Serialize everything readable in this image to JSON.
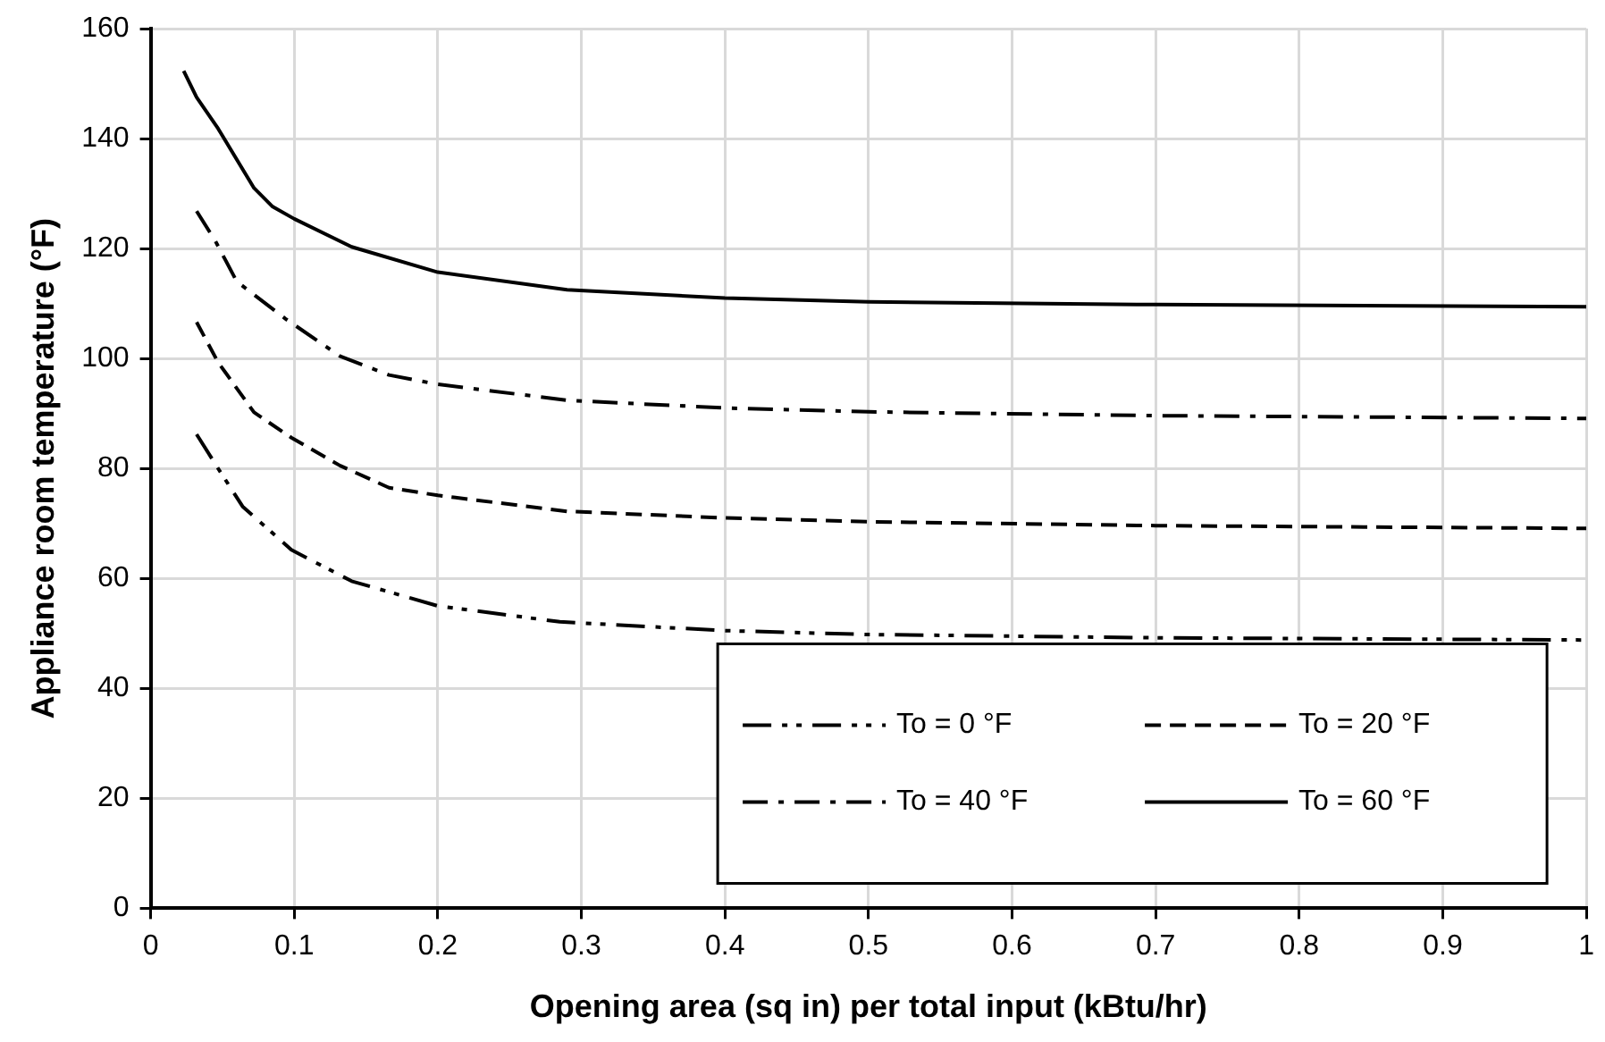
{
  "chart_data": {
    "type": "line",
    "xlabel": "Opening area (sq in) per total input (kBtu/hr)",
    "ylabel": "Appliance room temperature (°F)",
    "xlim": [
      0,
      1
    ],
    "xticks": [
      0,
      0.1,
      0.2,
      0.3,
      0.4,
      0.5,
      0.6,
      0.7,
      0.8,
      0.9,
      1
    ],
    "ylim": [
      0,
      160
    ],
    "yticks": [
      0,
      20,
      40,
      60,
      80,
      100,
      120,
      140,
      160
    ],
    "grid": true,
    "legend": "bottom right",
    "marker": "none",
    "series": [
      {
        "name": "To = 0 °F",
        "color": "#000000",
        "line_style": "dashdotdot",
        "x": [
          0.032,
          0.047,
          0.064,
          0.098,
          0.14,
          0.2,
          0.285,
          0.4,
          0.5,
          0.7,
          1
        ],
        "values": [
          86.2,
          80,
          73.1,
          65.2,
          59.5,
          55,
          52.1,
          50.5,
          49.8,
          49.2,
          48.8
        ]
      },
      {
        "name": "To = 20 °F",
        "color": "#000000",
        "line_style": "dashed",
        "x": [
          0.032,
          0.047,
          0.072,
          0.098,
          0.132,
          0.166,
          0.2,
          0.29,
          0.4,
          0.5,
          0.7,
          1
        ],
        "values": [
          106.6,
          99.3,
          90.2,
          85.6,
          80.5,
          76.5,
          75.1,
          72.2,
          71,
          70.3,
          69.6,
          69.1
        ]
      },
      {
        "name": "To = 40 °F",
        "color": "#000000",
        "line_style": "dashdot",
        "x": [
          0.032,
          0.045,
          0.06,
          0.094,
          0.132,
          0.166,
          0.2,
          0.29,
          0.4,
          0.5,
          0.7,
          1
        ],
        "values": [
          126.8,
          121.4,
          114,
          107.2,
          100.4,
          97,
          95.3,
          92.4,
          91,
          90.3,
          89.6,
          89.1
        ]
      },
      {
        "name": "To = 60 °F",
        "color": "#000000",
        "line_style": "solid",
        "x": [
          0.023,
          0.032,
          0.047,
          0.072,
          0.085,
          0.1,
          0.14,
          0.2,
          0.29,
          0.4,
          0.5,
          0.7,
          1
        ],
        "values": [
          152.3,
          147.5,
          141.8,
          131,
          127.6,
          125.4,
          120.3,
          115.7,
          112.5,
          111,
          110.3,
          109.8,
          109.4
        ]
      }
    ]
  }
}
